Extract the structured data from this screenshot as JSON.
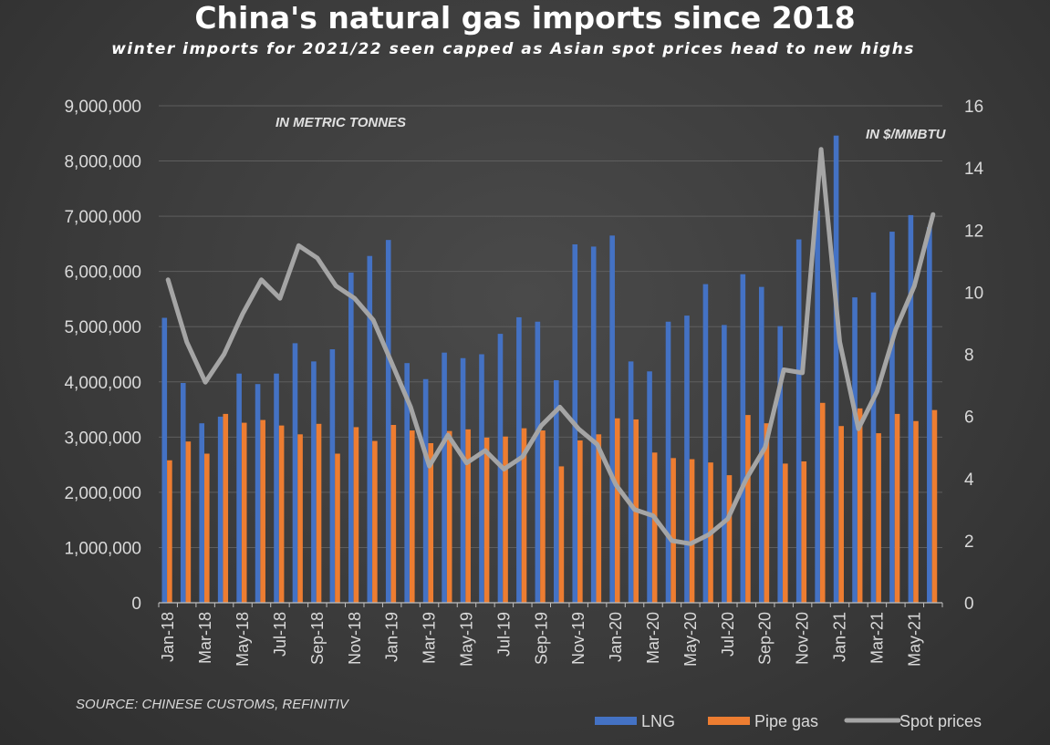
{
  "title": "China's natural gas imports since 2018",
  "subtitle": "winter imports for 2021/22 seen capped as Asian spot prices head to new highs",
  "chart_data": {
    "type": "bar",
    "title": "China's natural gas imports since 2018",
    "subtitle": "winter imports for 2021/22 seen capped as Asian spot prices head to new highs",
    "categories": [
      "Jan-18",
      "Feb-18",
      "Mar-18",
      "Apr-18",
      "May-18",
      "Jun-18",
      "Jul-18",
      "Aug-18",
      "Sep-18",
      "Oct-18",
      "Nov-18",
      "Dec-18",
      "Jan-19",
      "Feb-19",
      "Mar-19",
      "Apr-19",
      "May-19",
      "Jun-19",
      "Jul-19",
      "Aug-19",
      "Sep-19",
      "Oct-19",
      "Nov-19",
      "Dec-19",
      "Jan-20",
      "Feb-20",
      "Mar-20",
      "Apr-20",
      "May-20",
      "Jun-20",
      "Jul-20",
      "Aug-20",
      "Sep-20",
      "Oct-20",
      "Nov-20",
      "Dec-20",
      "Jan-21",
      "Feb-21",
      "Mar-21",
      "Apr-21",
      "May-21",
      "Jun-21"
    ],
    "x_tick_labels": [
      "Jan-18",
      "Mar-18",
      "May-18",
      "Jul-18",
      "Sep-18",
      "Nov-18",
      "Jan-19",
      "Mar-19",
      "May-19",
      "Jul-19",
      "Sep-19",
      "Nov-19",
      "Jan-20",
      "Mar-20",
      "May-20",
      "Jul-20",
      "Sep-20",
      "Nov-20",
      "Jan-21",
      "Mar-21",
      "May-21"
    ],
    "left_axis": {
      "label": "IN METRIC TONNES",
      "ylim": [
        0,
        9000000
      ],
      "ticks": [
        "0",
        "1,000,000",
        "2,000,000",
        "3,000,000",
        "4,000,000",
        "5,000,000",
        "6,000,000",
        "7,000,000",
        "8,000,000",
        "9,000,000"
      ]
    },
    "right_axis": {
      "label": "IN $/MMBTU",
      "ylim": [
        0,
        16
      ],
      "ticks": [
        "0",
        "2",
        "4",
        "6",
        "8",
        "10",
        "12",
        "14",
        "16"
      ]
    },
    "series": [
      {
        "name": "LNG",
        "type": "bar",
        "axis": "left",
        "color": "#4472c4",
        "values": [
          5160000,
          3980000,
          3250000,
          3370000,
          4150000,
          3960000,
          4150000,
          4700000,
          4370000,
          4590000,
          5980000,
          6280000,
          6570000,
          4340000,
          4050000,
          4530000,
          4430000,
          4500000,
          4870000,
          5170000,
          5090000,
          4030000,
          6490000,
          6450000,
          6650000,
          4370000,
          4190000,
          5090000,
          5200000,
          5770000,
          5030000,
          5950000,
          5720000,
          5010000,
          6580000,
          7100000,
          8460000,
          5530000,
          5620000,
          6720000,
          7020000,
          6800000
        ]
      },
      {
        "name": "Pipe gas",
        "type": "bar",
        "axis": "left",
        "color": "#ed7d31",
        "values": [
          2580000,
          2920000,
          2700000,
          3420000,
          3260000,
          3310000,
          3210000,
          3050000,
          3240000,
          2700000,
          3180000,
          2930000,
          3220000,
          3120000,
          2890000,
          3110000,
          3140000,
          2990000,
          3010000,
          3160000,
          3120000,
          2470000,
          2940000,
          3050000,
          3340000,
          3320000,
          2720000,
          2620000,
          2600000,
          2540000,
          2310000,
          3400000,
          3250000,
          2520000,
          2560000,
          3620000,
          3200000,
          3520000,
          3070000,
          3420000,
          3290000,
          3490000
        ]
      },
      {
        "name": "Spot prices",
        "type": "line",
        "axis": "right",
        "color": "#a5a5a5",
        "values": [
          10.4,
          8.4,
          7.1,
          8.0,
          9.3,
          10.4,
          9.8,
          11.5,
          11.1,
          10.2,
          9.8,
          9.1,
          7.7,
          6.3,
          4.4,
          5.4,
          4.5,
          4.9,
          4.3,
          4.7,
          5.7,
          6.3,
          5.6,
          5.1,
          3.8,
          3.0,
          2.8,
          2.0,
          1.9,
          2.2,
          2.7,
          4.0,
          5.0,
          7.5,
          7.4,
          14.6,
          8.4,
          5.6,
          6.8,
          8.8,
          10.2,
          12.5
        ]
      }
    ],
    "source": "SOURCE: CHINESE CUSTOMS, REFINITIV",
    "legend": {
      "position": "bottom-right",
      "items": [
        "LNG",
        "Pipe gas",
        "Spot prices"
      ]
    },
    "grid": true
  }
}
